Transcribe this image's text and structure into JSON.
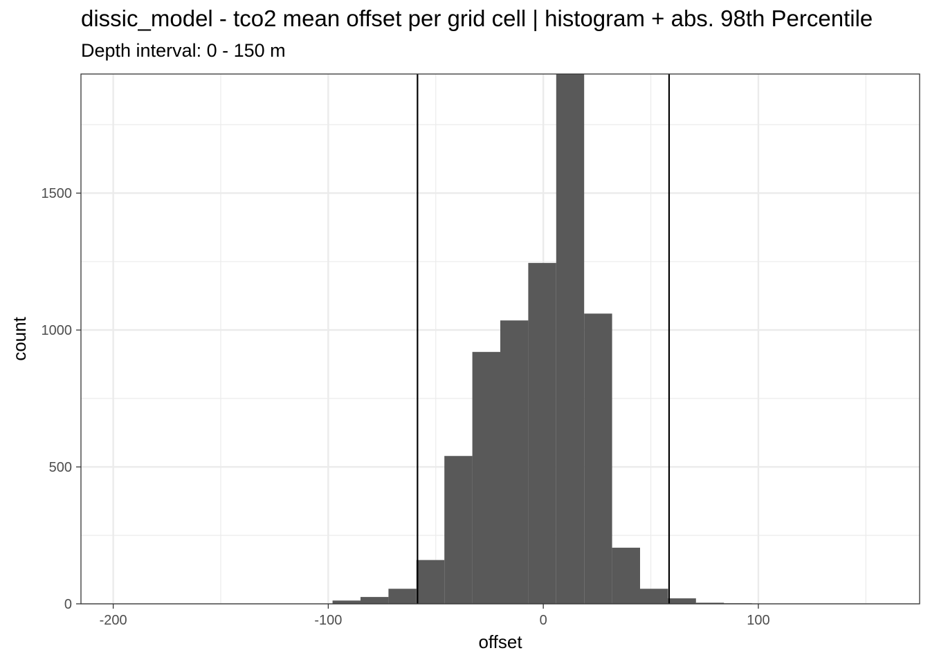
{
  "chart_data": {
    "type": "histogram",
    "title": "dissic_model  -  tco2 mean offset per grid cell | histogram + abs. 98th Percentile",
    "subtitle": "Depth interval: 0 - 150 m",
    "xlabel": "offset",
    "ylabel": "count",
    "xlim": [
      -215,
      175
    ],
    "ylim": [
      0,
      1935
    ],
    "x_ticks": [
      -200,
      -100,
      0,
      100
    ],
    "x_tick_labels": [
      "-200",
      "-100",
      "0",
      "100"
    ],
    "x_minor_ticks": [
      -150,
      -50,
      50,
      150
    ],
    "y_ticks": [
      0,
      500,
      1000,
      1500
    ],
    "y_tick_labels": [
      "0",
      "500",
      "1000",
      "1500"
    ],
    "y_minor_ticks": [
      250,
      750,
      1250,
      1750
    ],
    "bin_width": 13,
    "bins": [
      {
        "x0": -98,
        "x1": -85,
        "count": 12
      },
      {
        "x0": -85,
        "x1": -72,
        "count": 25
      },
      {
        "x0": -72,
        "x1": -59,
        "count": 55
      },
      {
        "x0": -59,
        "x1": -46,
        "count": 160
      },
      {
        "x0": -46,
        "x1": -33,
        "count": 540
      },
      {
        "x0": -33,
        "x1": -20,
        "count": 920
      },
      {
        "x0": -20,
        "x1": -7,
        "count": 1035
      },
      {
        "x0": -7,
        "x1": 6,
        "count": 1245
      },
      {
        "x0": 6,
        "x1": 19,
        "count": 1935
      },
      {
        "x0": 19,
        "x1": 32,
        "count": 1060
      },
      {
        "x0": 32,
        "x1": 45,
        "count": 205
      },
      {
        "x0": 45,
        "x1": 58,
        "count": 55
      },
      {
        "x0": 58,
        "x1": 71,
        "count": 20
      },
      {
        "x0": 71,
        "x1": 84,
        "count": 4
      },
      {
        "x0": 84,
        "x1": 97,
        "count": 2
      }
    ],
    "percentile_lines": [
      -58.5,
      58.5
    ],
    "bar_color": "#595959",
    "line_color": "#000000",
    "grid": true
  }
}
